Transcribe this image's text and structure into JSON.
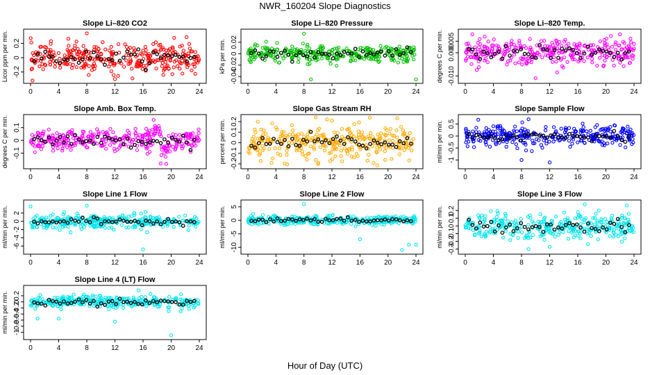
{
  "figure": {
    "title": "NWR_160204  Slope Diagnostics",
    "xlabel": "Hour of Day (UTC)"
  },
  "chart_data": [
    {
      "type": "scatter",
      "title": "Slope Li–820 CO2",
      "ylabel": "Licor ppm per min.",
      "xlim": [
        0,
        24
      ],
      "ylim": [
        -0.32,
        0.36
      ],
      "yticks": [
        -0.2,
        0.0,
        0.2
      ],
      "xticks": [
        0,
        4,
        8,
        12,
        16,
        20,
        24
      ],
      "color": "#ff0000",
      "spread": 0.1,
      "outliers": [
        [
          8,
          0.34
        ],
        [
          12,
          -0.3
        ]
      ],
      "series": [
        {
          "name": "",
          "description": "hourly scatter of slope values, points centered near 0 with spread about ±0.1"
        }
      ]
    },
    {
      "type": "scatter",
      "title": "Slope Li–820 Pressure",
      "ylabel": "kPa per min.",
      "xlim": [
        0,
        24
      ],
      "ylim": [
        -0.047,
        0.038
      ],
      "yticks": [
        -0.04,
        -0.02,
        0.0,
        0.02
      ],
      "xticks": [
        0,
        4,
        8,
        12,
        16,
        20,
        24
      ],
      "color": "#00c000",
      "spread": 0.007,
      "outliers": [
        [
          8,
          0.035
        ],
        [
          9,
          -0.045
        ],
        [
          24,
          -0.045
        ]
      ],
      "series": [
        {
          "name": "",
          "description": "points near 0 with spread about ±0.01"
        }
      ]
    },
    {
      "type": "scatter",
      "title": "Slope Li–820 Temp.",
      "ylabel": "degrees C per min.",
      "xlim": [
        0,
        24
      ],
      "ylim": [
        -0.012,
        0.009
      ],
      "yticks": [
        -0.01,
        0.0,
        0.005
      ],
      "ytick_labels": [
        "-0.010",
        "0.000",
        "0.005"
      ],
      "xticks": [
        0,
        4,
        8,
        12,
        16,
        20,
        24
      ],
      "color": "#ff00ff",
      "spread": 0.003,
      "outliers": [
        [
          1,
          0.008
        ],
        [
          22,
          0.008
        ],
        [
          10,
          -0.011
        ]
      ],
      "series": [
        {
          "name": "",
          "description": "points near 0.001 with spread about ±0.003"
        }
      ]
    },
    {
      "type": "scatter",
      "title": "Slope Amb. Box Temp.",
      "ylabel": "degrees C per min.",
      "xlim": [
        0,
        24
      ],
      "ylim": [
        -0.2,
        0.18
      ],
      "yticks": [
        -0.1,
        0.0,
        0.1
      ],
      "xticks": [
        0,
        4,
        8,
        12,
        16,
        20,
        24
      ],
      "color": "#ff00ff",
      "spread": 0.04,
      "outliers": [
        [
          17.5,
          0.16
        ],
        [
          18.5,
          -0.18
        ]
      ],
      "series": [
        {
          "name": "",
          "description": "points near 0 with a disturbance between hours 17 and 20"
        }
      ]
    },
    {
      "type": "scatter",
      "title": "Slope Gas Stream RH",
      "ylabel": "percent per min.",
      "xlim": [
        0,
        24
      ],
      "ylim": [
        -0.22,
        0.24
      ],
      "yticks": [
        -0.2,
        -0.1,
        0.0,
        0.1,
        0.2
      ],
      "xticks": [
        0,
        4,
        8,
        12,
        16,
        20,
        24
      ],
      "color": "#ffaa00",
      "spread": 0.08,
      "outliers": [
        [
          12,
          0.21
        ],
        [
          10,
          -0.2
        ]
      ],
      "series": [
        {
          "name": "",
          "description": "points near 0 with spread about ±0.15"
        }
      ]
    },
    {
      "type": "scatter",
      "title": "Slope Sample Flow",
      "ylabel": "ml/min per min.",
      "xlim": [
        0,
        24
      ],
      "ylim": [
        -1.25,
        0.78
      ],
      "yticks": [
        -1.0,
        -0.5,
        0.0,
        0.5
      ],
      "xticks": [
        0,
        4,
        8,
        12,
        16,
        20,
        24
      ],
      "color": "#0000ff",
      "spread": 0.2,
      "outliers": [
        [
          9,
          0.7
        ],
        [
          12,
          -1.1
        ],
        [
          8,
          -1.0
        ]
      ],
      "series": [
        {
          "name": "",
          "description": "points near 0 with spread about ±0.4"
        }
      ]
    },
    {
      "type": "scatter",
      "title": "Slope Line 1 Flow",
      "ylabel": "ml/min per min.",
      "xlim": [
        0,
        24
      ],
      "ylim": [
        -7.3,
        4.5
      ],
      "yticks": [
        -6,
        -4,
        -2,
        0,
        2
      ],
      "xticks": [
        0,
        4,
        8,
        12,
        16,
        20,
        24
      ],
      "color": "#00e5ee",
      "spread": 0.8,
      "outliers": [
        [
          0,
          3.6
        ],
        [
          8,
          3.8
        ],
        [
          16,
          -6.8
        ]
      ],
      "series": [
        {
          "name": "",
          "description": "points near 0 with spread about ±2"
        }
      ]
    },
    {
      "type": "scatter",
      "title": "Slope Line 2 Flow",
      "ylabel": "ml/min per min.",
      "xlim": [
        0,
        24
      ],
      "ylim": [
        -11.5,
        6.5
      ],
      "yticks": [
        -10,
        -5,
        0,
        5
      ],
      "xticks": [
        0,
        4,
        8,
        12,
        16,
        20,
        24
      ],
      "color": "#00e5ee",
      "spread": 0.8,
      "outliers": [
        [
          8,
          6
        ],
        [
          16,
          -7
        ],
        [
          22,
          -11
        ],
        [
          23,
          -9
        ],
        [
          24,
          -9
        ]
      ],
      "series": [
        {
          "name": "",
          "description": "points near 0 with negative outliers late in the day"
        }
      ]
    },
    {
      "type": "scatter",
      "title": "Slope Line 3 Flow",
      "ylabel": "ml/min per min.",
      "xlim": [
        0,
        24
      ],
      "ylim": [
        -0.33,
        0.3
      ],
      "yticks": [
        -0.3,
        -0.2,
        -0.1,
        0.0,
        0.1,
        0.2
      ],
      "xticks": [
        0,
        4,
        8,
        12,
        16,
        20,
        24
      ],
      "color": "#00e5ee",
      "spread": 0.08,
      "outliers": [
        [
          17,
          0.28
        ],
        [
          9,
          -0.3
        ],
        [
          12,
          -0.27
        ]
      ],
      "series": [
        {
          "name": "",
          "description": "points near 0 with spread about ±0.2"
        }
      ]
    },
    {
      "type": "scatter",
      "title": "Slope Line 4 (LT) Flow",
      "ylabel": "ml/min per min.",
      "xlim": [
        0,
        24
      ],
      "ylim": [
        -1.15,
        0.45
      ],
      "yticks": [
        -1.0,
        -0.8,
        -0.6,
        -0.4,
        -0.2,
        0.0,
        0.2
      ],
      "xticks": [
        0,
        4,
        8,
        12,
        16,
        20,
        24
      ],
      "color": "#00e5ee",
      "spread": 0.1,
      "outliers": [
        [
          20,
          -1.1
        ],
        [
          12,
          -0.65
        ],
        [
          4,
          -0.55
        ],
        [
          1,
          -0.55
        ]
      ],
      "series": [
        {
          "name": "",
          "description": "points near 0 with spread about ±0.3"
        }
      ]
    }
  ]
}
